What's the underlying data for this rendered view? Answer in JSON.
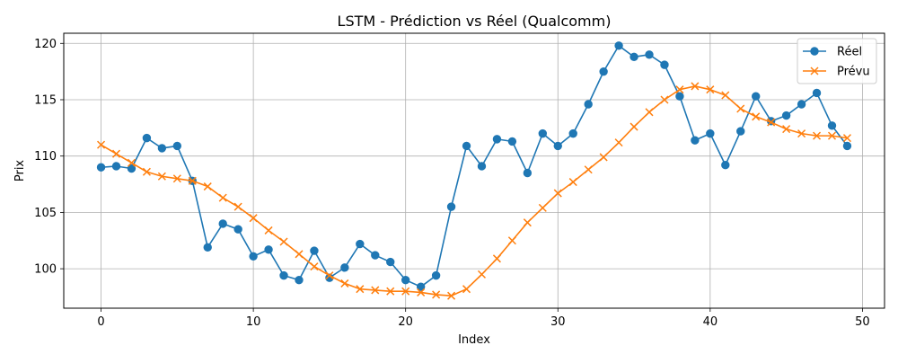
{
  "chart_data": {
    "type": "line",
    "title": "LSTM - Prédiction vs Réel (Qualcomm)",
    "xlabel": "Index",
    "ylabel": "Prix",
    "xlim": [
      -2.45,
      51.45
    ],
    "ylim": [
      96.5,
      120.9
    ],
    "grid": true,
    "legend_position": "top-right",
    "x_ticks": [
      0,
      10,
      20,
      30,
      40,
      50
    ],
    "y_ticks": [
      100,
      105,
      110,
      115,
      120
    ],
    "x": [
      0,
      1,
      2,
      3,
      4,
      5,
      6,
      7,
      8,
      9,
      10,
      11,
      12,
      13,
      14,
      15,
      16,
      17,
      18,
      19,
      20,
      21,
      22,
      23,
      24,
      25,
      26,
      27,
      28,
      29,
      30,
      31,
      32,
      33,
      34,
      35,
      36,
      37,
      38,
      39,
      40,
      41,
      42,
      43,
      44,
      45,
      46,
      47,
      48,
      49
    ],
    "series": [
      {
        "name": "Réel",
        "color": "#1f77b4",
        "marker": "circle",
        "values": [
          109.0,
          109.1,
          108.9,
          111.6,
          110.7,
          110.9,
          107.8,
          101.9,
          104.0,
          103.5,
          101.1,
          101.7,
          99.4,
          99.0,
          101.6,
          99.2,
          100.1,
          102.2,
          101.2,
          100.6,
          99.0,
          98.4,
          99.4,
          105.5,
          110.9,
          109.1,
          111.5,
          111.3,
          108.5,
          112.0,
          110.9,
          112.0,
          114.6,
          117.5,
          119.8,
          118.8,
          119.0,
          118.1,
          115.3,
          111.4,
          112.0,
          109.2,
          112.2,
          115.3,
          113.1,
          113.6,
          114.6,
          115.6,
          112.7,
          110.9
        ]
      },
      {
        "name": "Prévu",
        "color": "#ff7f0e",
        "marker": "x",
        "values": [
          111.0,
          110.2,
          109.4,
          108.6,
          108.2,
          108.0,
          107.8,
          107.3,
          106.3,
          105.5,
          104.5,
          103.4,
          102.4,
          101.3,
          100.2,
          99.4,
          98.7,
          98.2,
          98.1,
          98.0,
          98.0,
          97.9,
          97.7,
          97.6,
          98.2,
          99.5,
          100.9,
          102.5,
          104.1,
          105.4,
          106.7,
          107.7,
          108.8,
          109.9,
          111.2,
          112.6,
          113.9,
          115.0,
          115.9,
          116.2,
          115.9,
          115.4,
          114.2,
          113.5,
          113.0,
          112.4,
          112.0,
          111.8,
          111.8,
          111.6
        ]
      }
    ]
  }
}
